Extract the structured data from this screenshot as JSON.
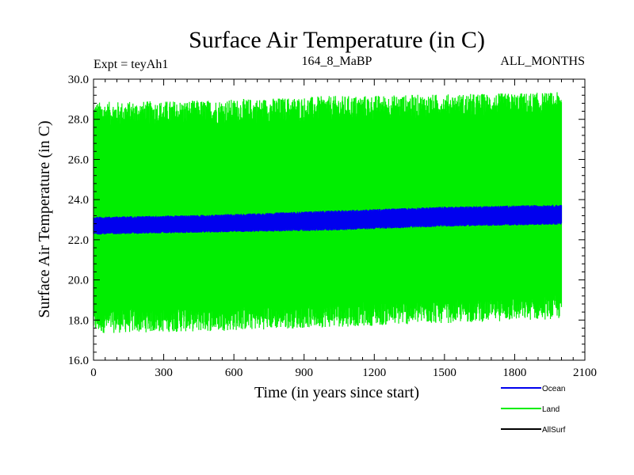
{
  "chart_data": {
    "type": "line",
    "title": "Surface Air Temperature (in C)",
    "subtitle_left": "Expt = teyAh1",
    "subtitle_center": "164_8_MaBP",
    "subtitle_right": "ALL_MONTHS",
    "xlabel": "Time (in years since start)",
    "ylabel": "Surface Air Temperature (in C)",
    "xlim": [
      0,
      2100
    ],
    "ylim": [
      16.0,
      30.0
    ],
    "xticks": [
      0,
      300,
      600,
      900,
      1200,
      1500,
      1800,
      2100
    ],
    "xtick_labels": [
      "0",
      "300",
      "600",
      "900",
      "1200",
      "1500",
      "1800",
      "2100"
    ],
    "yticks": [
      16,
      18,
      20,
      22,
      24,
      26,
      28,
      30
    ],
    "ytick_labels": [
      "16.0",
      "18.0",
      "20.0",
      "22.0",
      "24.0",
      "26.0",
      "28.0",
      "30.0"
    ],
    "x_range": [
      0,
      2000
    ],
    "legend_position": "bottom-right",
    "series": [
      {
        "name": "Land",
        "color": "#00ee00",
        "description": "monthly values oscillating seasonally",
        "upper_envelope": {
          "x": [
            0,
            500,
            1000,
            1500,
            2000
          ],
          "y": [
            28.3,
            28.4,
            28.6,
            28.7,
            28.8
          ]
        },
        "lower_envelope": {
          "x": [
            0,
            500,
            1000,
            1500,
            2000
          ],
          "y": [
            17.9,
            18.0,
            18.2,
            18.4,
            18.6
          ]
        }
      },
      {
        "name": "Ocean",
        "color": "#0000ee",
        "description": "monthly values with small seasonal range",
        "upper_envelope": {
          "x": [
            0,
            500,
            1000,
            1500,
            2000
          ],
          "y": [
            23.1,
            23.2,
            23.4,
            23.6,
            23.7
          ]
        },
        "lower_envelope": {
          "x": [
            0,
            500,
            1000,
            1500,
            2000
          ],
          "y": [
            22.3,
            22.4,
            22.5,
            22.7,
            22.8
          ]
        }
      },
      {
        "name": "AllSurf",
        "color": "#000000",
        "description": "not visible (hidden behind other series)"
      }
    ],
    "legend": [
      {
        "name": "Ocean",
        "color": "#0000ee"
      },
      {
        "name": "Land",
        "color": "#00ee00"
      },
      {
        "name": "AllSurf",
        "color": "#000000"
      }
    ]
  }
}
